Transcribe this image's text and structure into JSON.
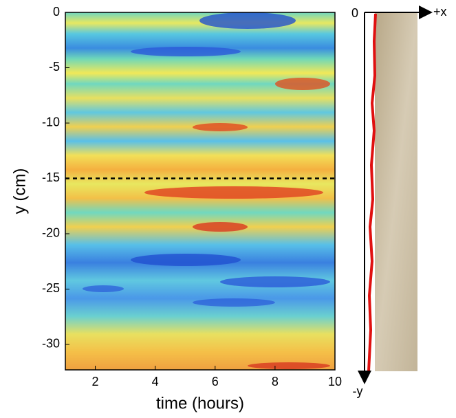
{
  "chart_data": {
    "type": "heatmap",
    "xlabel": "time (hours)",
    "ylabel": "y (cm)",
    "xlim": [
      1,
      10
    ],
    "xticks": [
      2,
      4,
      6,
      8,
      10
    ],
    "ylim": [
      -32.3,
      0
    ],
    "yticks": [
      0,
      -5,
      -10,
      -15,
      -20,
      -25,
      -30
    ],
    "reference_line": -15,
    "inset": {
      "origin_label": "0",
      "x_axis_label": "+x",
      "y_axis_label": "-y"
    }
  }
}
